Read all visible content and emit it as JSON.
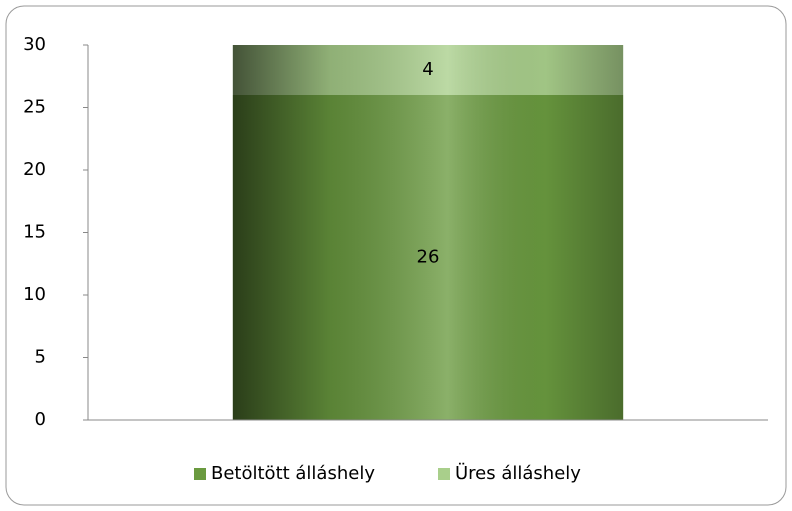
{
  "chart_data": {
    "type": "stacked_bar",
    "categories": [
      null
    ],
    "series": [
      {
        "name": "Betöltött álláshely",
        "color": "#6a9a3f",
        "values": [
          26
        ]
      },
      {
        "name": "Üres álláshely",
        "color": "#a9cf8b",
        "values": [
          4
        ]
      }
    ],
    "ylim": [
      0,
      30
    ],
    "yticks": [
      0,
      5,
      10,
      15,
      20,
      25,
      30
    ],
    "grid": false,
    "legend": "bottom"
  }
}
